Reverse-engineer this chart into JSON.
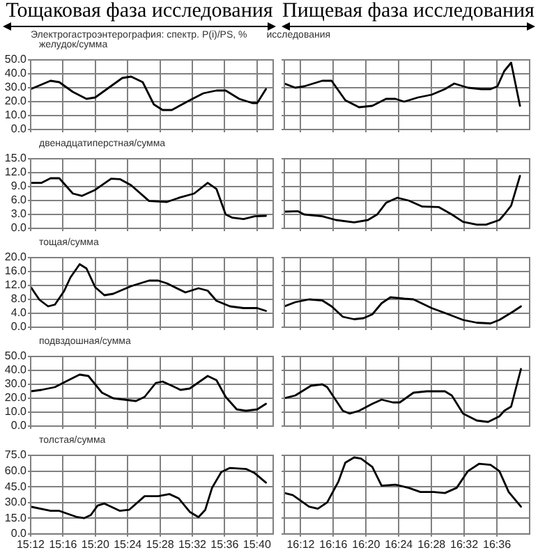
{
  "chart_data": [
    {
      "type": "line",
      "title": "желудок/сумма",
      "subtitle": "Электрогастроэнтерография: спектр. P(i)/PS, %",
      "annotations": [
        "Тощаковая фаза исследования",
        "исследования"
      ],
      "tick_labels": "y",
      "grid": true,
      "xlim": [
        15.2,
        15.7
      ],
      "xticks": [
        {
          "value": 15.2,
          "label": null
        },
        {
          "value": 15.2667,
          "label": null
        },
        {
          "value": 15.3333,
          "label": null
        },
        {
          "value": 15.4,
          "label": null
        },
        {
          "value": 15.4667,
          "label": null
        },
        {
          "value": 15.5333,
          "label": null
        },
        {
          "value": 15.6,
          "label": null
        },
        {
          "value": 15.6667,
          "label": null
        }
      ],
      "ylim": [
        0,
        50
      ],
      "yticks": [
        {
          "value": 0,
          "label": "0.0"
        },
        {
          "value": 10,
          "label": "10.0"
        },
        {
          "value": 20,
          "label": "20.0"
        },
        {
          "value": 30,
          "label": "30.0"
        },
        {
          "value": 40,
          "label": "40.0"
        },
        {
          "value": 50,
          "label": "50.0"
        }
      ],
      "x": [
        15.2,
        15.241,
        15.259,
        15.287,
        15.315,
        15.333,
        15.361,
        15.389,
        15.407,
        15.431,
        15.454,
        15.472,
        15.491,
        15.528,
        15.556,
        15.583,
        15.602,
        15.63,
        15.657,
        15.667,
        15.685
      ],
      "series": [
        {
          "color": "#000000",
          "values": [
            29,
            35,
            34,
            27,
            22,
            23,
            30,
            37,
            38,
            34,
            18,
            14,
            14,
            21,
            26,
            28,
            28,
            22,
            19,
            19,
            29
          ]
        }
      ]
    },
    {
      "type": "line",
      "annotations": [
        "Пищевая фаза исследования"
      ],
      "tick_labels": false,
      "grid": true,
      "xlim": [
        16.1667,
        16.6667
      ],
      "xticks": [
        {
          "value": 16.2,
          "label": null
        },
        {
          "value": 16.2667,
          "label": null
        },
        {
          "value": 16.3333,
          "label": null
        },
        {
          "value": 16.4,
          "label": null
        },
        {
          "value": 16.4667,
          "label": null
        },
        {
          "value": 16.5333,
          "label": null
        },
        {
          "value": 16.6,
          "label": null
        }
      ],
      "ylim": [
        0,
        50
      ],
      "yticks": [
        {
          "value": 0,
          "label": null
        },
        {
          "value": 10,
          "label": null
        },
        {
          "value": 20,
          "label": null
        },
        {
          "value": 30,
          "label": null
        },
        {
          "value": 40,
          "label": null
        },
        {
          "value": 50,
          "label": null
        }
      ],
      "x": [
        16.167,
        16.189,
        16.207,
        16.244,
        16.263,
        16.291,
        16.319,
        16.346,
        16.374,
        16.393,
        16.411,
        16.439,
        16.467,
        16.494,
        16.513,
        16.541,
        16.568,
        16.587,
        16.601,
        16.615,
        16.629,
        16.647
      ],
      "series": [
        {
          "color": "#000000",
          "values": [
            33,
            30,
            31,
            35,
            35,
            21,
            16,
            17,
            22,
            22,
            20,
            23,
            25,
            29,
            33,
            30,
            29,
            29,
            31,
            42,
            48,
            17
          ]
        }
      ]
    },
    {
      "type": "line",
      "title": "двенадцатиперстная/сумма",
      "tick_labels": "y",
      "grid": true,
      "xlim": [
        15.2,
        15.7
      ],
      "xticks": [
        {
          "value": 15.2,
          "label": null
        },
        {
          "value": 15.2667,
          "label": null
        },
        {
          "value": 15.3333,
          "label": null
        },
        {
          "value": 15.4,
          "label": null
        },
        {
          "value": 15.4667,
          "label": null
        },
        {
          "value": 15.5333,
          "label": null
        },
        {
          "value": 15.6,
          "label": null
        },
        {
          "value": 15.6667,
          "label": null
        }
      ],
      "ylim": [
        0,
        15
      ],
      "yticks": [
        {
          "value": 0,
          "label": "0.0"
        },
        {
          "value": 3,
          "label": "3.0"
        },
        {
          "value": 6,
          "label": "6.0"
        },
        {
          "value": 9,
          "label": "9.0"
        },
        {
          "value": 12,
          "label": "12.0"
        },
        {
          "value": 15,
          "label": "15.0"
        }
      ],
      "x": [
        15.2,
        15.222,
        15.241,
        15.259,
        15.287,
        15.306,
        15.333,
        15.366,
        15.384,
        15.407,
        15.444,
        15.481,
        15.509,
        15.537,
        15.565,
        15.583,
        15.602,
        15.616,
        15.639,
        15.662,
        15.685
      ],
      "series": [
        {
          "color": "#000000",
          "values": [
            9.8,
            9.8,
            10.8,
            10.8,
            7.5,
            7.0,
            8.3,
            10.7,
            10.6,
            9.3,
            5.9,
            5.7,
            6.7,
            7.5,
            9.8,
            8.5,
            3.0,
            2.3,
            2.0,
            2.6,
            2.7
          ]
        }
      ]
    },
    {
      "type": "line",
      "tick_labels": false,
      "grid": true,
      "xlim": [
        16.1667,
        16.6667
      ],
      "xticks": [
        {
          "value": 16.2,
          "label": null
        },
        {
          "value": 16.2667,
          "label": null
        },
        {
          "value": 16.3333,
          "label": null
        },
        {
          "value": 16.4,
          "label": null
        },
        {
          "value": 16.4667,
          "label": null
        },
        {
          "value": 16.5333,
          "label": null
        },
        {
          "value": 16.6,
          "label": null
        }
      ],
      "ylim": [
        0,
        15
      ],
      "yticks": [
        {
          "value": 0,
          "label": null
        },
        {
          "value": 3,
          "label": null
        },
        {
          "value": 6,
          "label": null
        },
        {
          "value": 9,
          "label": null
        },
        {
          "value": 12,
          "label": null
        },
        {
          "value": 15,
          "label": null
        }
      ],
      "x": [
        16.167,
        16.194,
        16.207,
        16.244,
        16.272,
        16.309,
        16.337,
        16.356,
        16.374,
        16.397,
        16.42,
        16.448,
        16.481,
        16.508,
        16.531,
        16.559,
        16.578,
        16.605,
        16.615,
        16.629,
        16.647
      ],
      "series": [
        {
          "color": "#000000",
          "values": [
            3.6,
            3.7,
            3.0,
            2.6,
            1.8,
            1.3,
            1.8,
            3.0,
            5.5,
            6.6,
            6.0,
            4.7,
            4.6,
            3.0,
            1.4,
            0.8,
            0.8,
            1.8,
            3.0,
            4.9,
            11.3
          ]
        }
      ]
    },
    {
      "type": "line",
      "title": "тощая/сумма",
      "tick_labels": "y",
      "grid": true,
      "xlim": [
        15.2,
        15.7
      ],
      "xticks": [
        {
          "value": 15.2,
          "label": null
        },
        {
          "value": 15.2667,
          "label": null
        },
        {
          "value": 15.3333,
          "label": null
        },
        {
          "value": 15.4,
          "label": null
        },
        {
          "value": 15.4667,
          "label": null
        },
        {
          "value": 15.5333,
          "label": null
        },
        {
          "value": 15.6,
          "label": null
        },
        {
          "value": 15.6667,
          "label": null
        }
      ],
      "ylim": [
        0,
        20
      ],
      "yticks": [
        {
          "value": 0,
          "label": "0.0"
        },
        {
          "value": 4,
          "label": "4.0"
        },
        {
          "value": 8,
          "label": "8.0"
        },
        {
          "value": 12,
          "label": "12.0"
        },
        {
          "value": 16,
          "label": "16.0"
        },
        {
          "value": 20,
          "label": "20.0"
        }
      ],
      "x": [
        15.2,
        15.218,
        15.236,
        15.25,
        15.269,
        15.282,
        15.301,
        15.315,
        15.333,
        15.352,
        15.37,
        15.407,
        15.444,
        15.463,
        15.481,
        15.519,
        15.546,
        15.565,
        15.583,
        15.611,
        15.639,
        15.667,
        15.685
      ],
      "series": [
        {
          "color": "#000000",
          "values": [
            11.6,
            7.9,
            6.0,
            6.5,
            10.4,
            14.3,
            18.1,
            16.9,
            11.5,
            9.2,
            9.6,
            11.8,
            13.4,
            13.4,
            12.6,
            10.0,
            11.2,
            10.5,
            7.6,
            6.0,
            5.5,
            5.5,
            4.7
          ]
        }
      ]
    },
    {
      "type": "line",
      "tick_labels": false,
      "grid": true,
      "xlim": [
        16.1667,
        16.6667
      ],
      "xticks": [
        {
          "value": 16.2,
          "label": null
        },
        {
          "value": 16.2667,
          "label": null
        },
        {
          "value": 16.3333,
          "label": null
        },
        {
          "value": 16.4,
          "label": null
        },
        {
          "value": 16.4667,
          "label": null
        },
        {
          "value": 16.5333,
          "label": null
        },
        {
          "value": 16.6,
          "label": null
        }
      ],
      "ylim": [
        0,
        20
      ],
      "yticks": [
        {
          "value": 0,
          "label": null
        },
        {
          "value": 4,
          "label": null
        },
        {
          "value": 8,
          "label": null
        },
        {
          "value": 12,
          "label": null
        },
        {
          "value": 16,
          "label": null
        },
        {
          "value": 20,
          "label": null
        }
      ],
      "x": [
        16.167,
        16.189,
        16.217,
        16.244,
        16.263,
        16.286,
        16.309,
        16.328,
        16.346,
        16.365,
        16.383,
        16.411,
        16.43,
        16.467,
        16.494,
        16.531,
        16.559,
        16.587,
        16.605,
        16.633,
        16.649
      ],
      "series": [
        {
          "color": "#000000",
          "values": [
            6.0,
            7.2,
            8.0,
            7.7,
            6.0,
            3.0,
            2.3,
            2.6,
            3.7,
            6.9,
            8.6,
            8.2,
            8.0,
            5.5,
            4.1,
            2.1,
            1.3,
            1.1,
            2.1,
            4.5,
            6.0
          ]
        }
      ]
    },
    {
      "type": "line",
      "title": "подвздошная/сумма",
      "tick_labels": "y",
      "grid": true,
      "xlim": [
        15.2,
        15.7
      ],
      "xticks": [
        {
          "value": 15.2,
          "label": null
        },
        {
          "value": 15.2667,
          "label": null
        },
        {
          "value": 15.3333,
          "label": null
        },
        {
          "value": 15.4,
          "label": null
        },
        {
          "value": 15.4667,
          "label": null
        },
        {
          "value": 15.5333,
          "label": null
        },
        {
          "value": 15.6,
          "label": null
        },
        {
          "value": 15.6667,
          "label": null
        }
      ],
      "ylim": [
        0,
        50
      ],
      "yticks": [
        {
          "value": 0,
          "label": "0.0"
        },
        {
          "value": 10,
          "label": "10.0"
        },
        {
          "value": 20,
          "label": "20.0"
        },
        {
          "value": 30,
          "label": "30.0"
        },
        {
          "value": 40,
          "label": "40.0"
        },
        {
          "value": 50,
          "label": "50.0"
        }
      ],
      "x": [
        15.2,
        15.222,
        15.25,
        15.278,
        15.301,
        15.319,
        15.347,
        15.37,
        15.417,
        15.435,
        15.458,
        15.472,
        15.491,
        15.509,
        15.528,
        15.565,
        15.583,
        15.602,
        15.625,
        15.644,
        15.667,
        15.685
      ],
      "series": [
        {
          "color": "#000000",
          "values": [
            25,
            26,
            28,
            33,
            37,
            36,
            24,
            20,
            18,
            21,
            31,
            32,
            29,
            26,
            27,
            36,
            33,
            21,
            12,
            11,
            12,
            16
          ]
        }
      ]
    },
    {
      "type": "line",
      "tick_labels": false,
      "grid": true,
      "xlim": [
        16.1667,
        16.6667
      ],
      "xticks": [
        {
          "value": 16.2,
          "label": null
        },
        {
          "value": 16.2667,
          "label": null
        },
        {
          "value": 16.3333,
          "label": null
        },
        {
          "value": 16.4,
          "label": null
        },
        {
          "value": 16.4667,
          "label": null
        },
        {
          "value": 16.5333,
          "label": null
        },
        {
          "value": 16.6,
          "label": null
        }
      ],
      "ylim": [
        0,
        50
      ],
      "yticks": [
        {
          "value": 0,
          "label": null
        },
        {
          "value": 10,
          "label": null
        },
        {
          "value": 20,
          "label": null
        },
        {
          "value": 30,
          "label": null
        },
        {
          "value": 40,
          "label": null
        },
        {
          "value": 50,
          "label": null
        }
      ],
      "x": [
        16.167,
        16.189,
        16.221,
        16.244,
        16.254,
        16.286,
        16.3,
        16.319,
        16.346,
        16.365,
        16.388,
        16.402,
        16.43,
        16.457,
        16.494,
        16.508,
        16.531,
        16.559,
        16.582,
        16.605,
        16.615,
        16.629,
        16.649
      ],
      "series": [
        {
          "color": "#000000",
          "values": [
            20,
            22,
            29,
            30,
            28,
            11,
            9,
            11,
            16,
            19,
            17,
            17,
            24,
            25,
            25,
            22,
            9,
            4,
            3,
            7,
            11,
            14,
            41
          ]
        }
      ]
    },
    {
      "type": "line",
      "title": "толстая/сумма",
      "grid": true,
      "xlim": [
        15.2,
        15.7
      ],
      "xticks": [
        {
          "value": 15.2,
          "label": "15:12"
        },
        {
          "value": 15.2667,
          "label": "15:16"
        },
        {
          "value": 15.3333,
          "label": "15:20"
        },
        {
          "value": 15.4,
          "label": "15:24"
        },
        {
          "value": 15.4667,
          "label": "15:28"
        },
        {
          "value": 15.5333,
          "label": "15:32"
        },
        {
          "value": 15.6,
          "label": "15:36"
        },
        {
          "value": 15.6667,
          "label": "15:40"
        }
      ],
      "ylim": [
        0,
        75
      ],
      "yticks": [
        {
          "value": 0,
          "label": "0.0"
        },
        {
          "value": 15,
          "label": "15.0"
        },
        {
          "value": 30,
          "label": "30.0"
        },
        {
          "value": 45,
          "label": "45.0"
        },
        {
          "value": 60,
          "label": "60.0"
        },
        {
          "value": 75,
          "label": "75.0"
        }
      ],
      "x": [
        15.2,
        15.241,
        15.259,
        15.296,
        15.31,
        15.324,
        15.338,
        15.352,
        15.384,
        15.403,
        15.435,
        15.463,
        15.486,
        15.505,
        15.528,
        15.546,
        15.56,
        15.574,
        15.593,
        15.611,
        15.644,
        15.662,
        15.685
      ],
      "series": [
        {
          "color": "#000000",
          "values": [
            26,
            22,
            22,
            16,
            15,
            18,
            27,
            29,
            22,
            23,
            36,
            36,
            38,
            34,
            21,
            16,
            23,
            44,
            59,
            63,
            62,
            58,
            49
          ]
        }
      ]
    },
    {
      "type": "line",
      "tick_labels": "x",
      "grid": true,
      "xlim": [
        16.1667,
        16.6667
      ],
      "xticks": [
        {
          "value": 16.2,
          "label": "16:12"
        },
        {
          "value": 16.2667,
          "label": "16:16"
        },
        {
          "value": 16.3333,
          "label": "16:20"
        },
        {
          "value": 16.4,
          "label": "16:24"
        },
        {
          "value": 16.4667,
          "label": "16:28"
        },
        {
          "value": 16.5333,
          "label": "16:32"
        },
        {
          "value": 16.6,
          "label": "16:36"
        }
      ],
      "ylim": [
        0,
        75
      ],
      "yticks": [
        {
          "value": 0,
          "label": null
        },
        {
          "value": 15,
          "label": null
        },
        {
          "value": 30,
          "label": null
        },
        {
          "value": 45,
          "label": null
        },
        {
          "value": 60,
          "label": null
        },
        {
          "value": 75,
          "label": null
        }
      ],
      "x": [
        16.167,
        16.184,
        16.217,
        16.235,
        16.254,
        16.277,
        16.291,
        16.309,
        16.323,
        16.346,
        16.365,
        16.393,
        16.42,
        16.444,
        16.471,
        16.494,
        16.518,
        16.541,
        16.564,
        16.587,
        16.605,
        16.624,
        16.649
      ],
      "series": [
        {
          "color": "#000000",
          "values": [
            39,
            37,
            26,
            24,
            30,
            50,
            68,
            73,
            72,
            64,
            46,
            47,
            44,
            40,
            40,
            39,
            44,
            60,
            67,
            66,
            60,
            40,
            26
          ]
        }
      ]
    }
  ]
}
